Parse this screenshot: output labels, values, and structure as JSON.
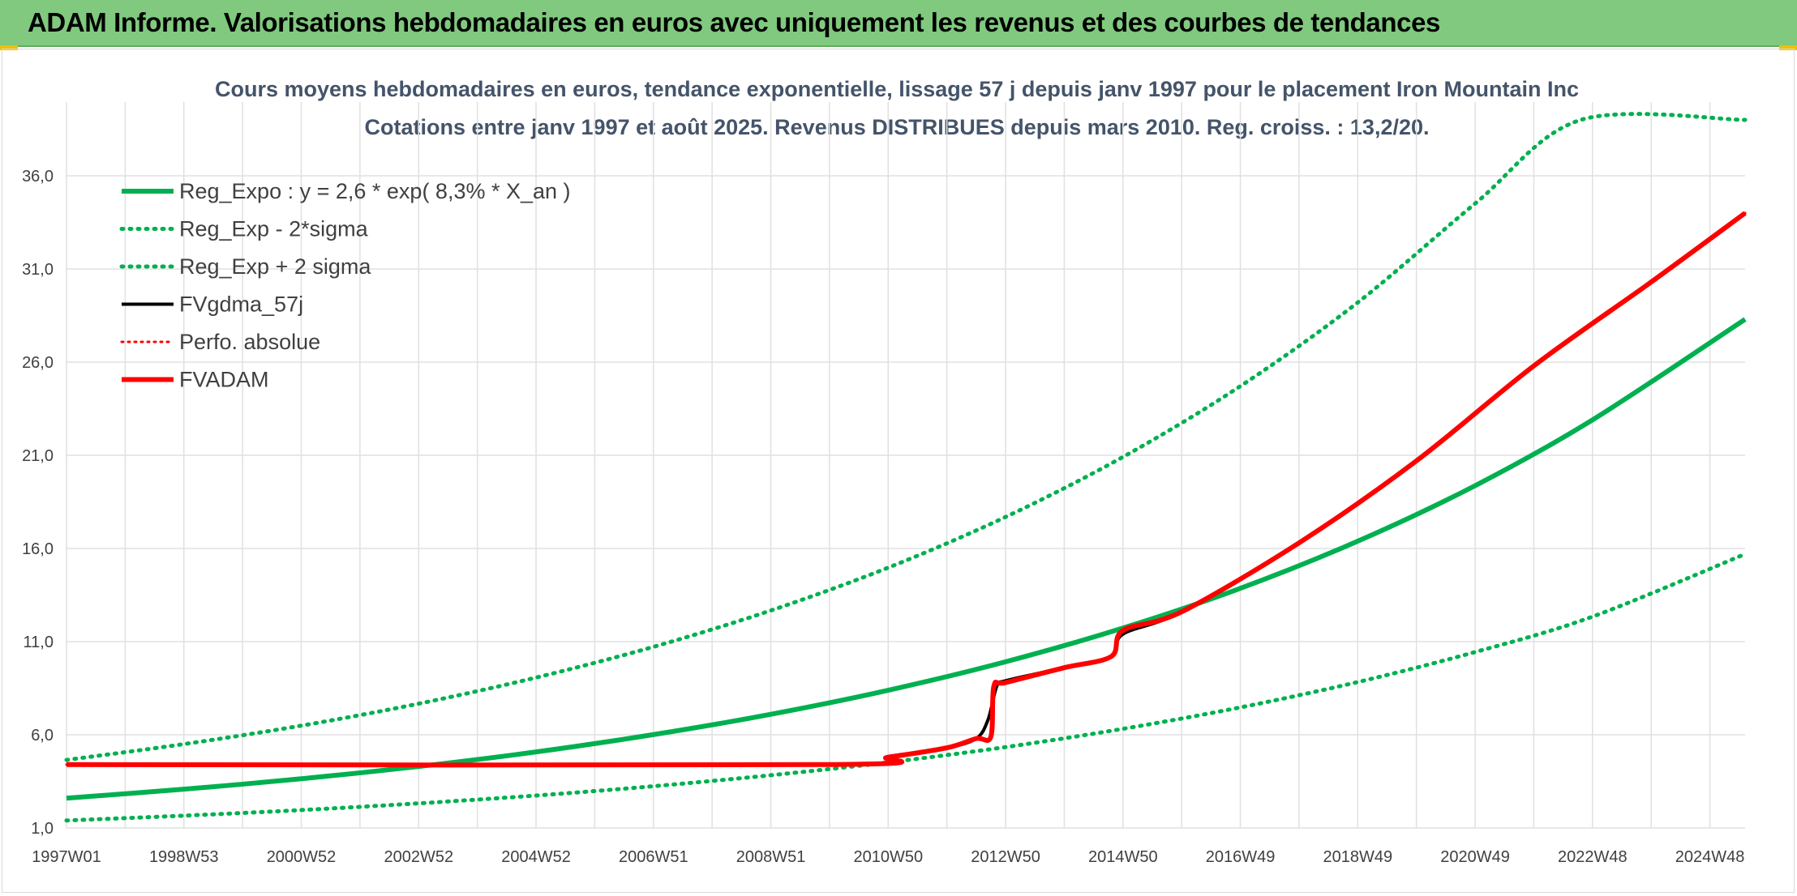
{
  "banner": {
    "title": "ADAM Informe. Valorisations hebdomadaires en euros avec uniquement les revenus et des courbes de tendances"
  },
  "colors": {
    "banner_bg": "#80c97e",
    "reg_green": "#00b050",
    "fvgdma_black": "#000000",
    "fvadam_red": "#ff0000",
    "grid": "#e0e0e0"
  },
  "chart_data": {
    "type": "line",
    "title_lines": [
      "Cours moyens hebdomadaires en euros, tendance exponentielle, lissage 57 j depuis janv 1997 pour le placement Iron Mountain Inc",
      "Cotations entre janv 1997 et août 2025. Revenus DISTRIBUES depuis mars 2010. Reg. croiss. : 13,2/20."
    ],
    "x_tick_labels": [
      "1997W01",
      "1998W53",
      "2000W52",
      "2002W52",
      "2004W52",
      "2006W51",
      "2008W51",
      "2010W50",
      "2012W50",
      "2014W50",
      "2016W49",
      "2018W49",
      "2020W49",
      "2022W48",
      "2024W48"
    ],
    "x_ticks_years": [
      1997.0,
      1999.0,
      2001.0,
      2003.0,
      2005.0,
      2007.0,
      2009.0,
      2011.0,
      2013.0,
      2015.0,
      2017.0,
      2019.0,
      2021.0,
      2023.0,
      2025.0
    ],
    "xlim": [
      1997.0,
      2025.6
    ],
    "y_ticks": [
      "1,0",
      "6,0",
      "11,0",
      "16,0",
      "21,0",
      "26,0",
      "31,0",
      "36,0"
    ],
    "y_tick_values": [
      1,
      6,
      11,
      16,
      21,
      26,
      31,
      36
    ],
    "ylim": [
      1,
      39
    ],
    "grid": true,
    "legend_position": "top-left",
    "series": [
      {
        "name": "Reg_Expo : y = 2,6 * exp( 8,3% *  X_an )",
        "style": "solid-green",
        "x": [
          1997.0,
          1999.0,
          2001.0,
          2003.0,
          2005.0,
          2007.0,
          2009.0,
          2011.0,
          2013.0,
          2015.0,
          2017.0,
          2019.0,
          2021.0,
          2023.0,
          2025.6
        ],
        "y": [
          2.6,
          3.08,
          3.64,
          4.3,
          5.08,
          6.01,
          7.1,
          8.39,
          9.92,
          11.73,
          13.86,
          16.39,
          19.37,
          22.9,
          28.3
        ]
      },
      {
        "name": "Reg_Exp - 2*sigma",
        "style": "dotted-green",
        "x": [
          1997.0,
          1999.0,
          2001.0,
          2003.0,
          2005.0,
          2007.0,
          2009.0,
          2011.0,
          2013.0,
          2015.0,
          2017.0,
          2019.0,
          2021.0,
          2023.0,
          2025.6
        ],
        "y": [
          1.4,
          1.66,
          1.96,
          2.32,
          2.74,
          3.24,
          3.83,
          4.52,
          5.34,
          6.32,
          7.47,
          8.83,
          10.44,
          12.34,
          15.7
        ]
      },
      {
        "name": "Reg_Exp + 2 sigma",
        "style": "dotted-green",
        "x": [
          1997.0,
          1999.0,
          2001.0,
          2003.0,
          2005.0,
          2007.0,
          2009.0,
          2011.0,
          2013.0,
          2015.0,
          2017.0,
          2019.0,
          2021.0,
          2022.8,
          2025.6
        ],
        "y": [
          4.65,
          5.5,
          6.49,
          7.67,
          9.07,
          10.72,
          12.67,
          14.97,
          17.69,
          20.91,
          24.71,
          29.2,
          34.51,
          39.0,
          39.0
        ]
      },
      {
        "name": "FVgdma_57j",
        "style": "solid-black",
        "x": [
          1997.0,
          2010.0,
          2011.0,
          2012.0,
          2012.5,
          2012.7,
          2012.85,
          2013.0,
          2014.0,
          2014.8,
          2015.0,
          2016.0,
          2018.0,
          2020.0,
          2022.0,
          2024.0,
          2025.6
        ],
        "y": [
          4.4,
          4.4,
          4.8,
          5.3,
          5.8,
          6.8,
          8.6,
          8.9,
          9.6,
          10.2,
          11.4,
          12.6,
          16.3,
          20.7,
          25.8,
          30.3,
          34.0
        ]
      },
      {
        "name": "Perfo. absolue",
        "style": "dotted-red",
        "x": [
          1997.0,
          2010.0,
          2011.0,
          2012.0,
          2012.5,
          2012.75,
          2012.8,
          2013.0,
          2014.0,
          2014.8,
          2015.0,
          2016.0,
          2018.0,
          2020.0,
          2022.0,
          2024.0,
          2025.6
        ],
        "y": [
          4.4,
          4.4,
          4.8,
          5.3,
          5.8,
          5.9,
          8.6,
          8.8,
          9.6,
          10.2,
          11.6,
          12.6,
          16.3,
          20.7,
          25.8,
          30.3,
          34.0
        ]
      },
      {
        "name": "FVADAM",
        "style": "solid-red",
        "x": [
          1997.0,
          2010.0,
          2011.0,
          2012.0,
          2012.5,
          2012.75,
          2012.8,
          2013.0,
          2014.0,
          2014.8,
          2015.0,
          2016.0,
          2018.0,
          2020.0,
          2022.0,
          2024.0,
          2025.6
        ],
        "y": [
          4.4,
          4.4,
          4.8,
          5.3,
          5.8,
          5.9,
          8.6,
          8.8,
          9.6,
          10.2,
          11.6,
          12.6,
          16.3,
          20.7,
          25.8,
          30.3,
          34.0
        ]
      }
    ]
  }
}
